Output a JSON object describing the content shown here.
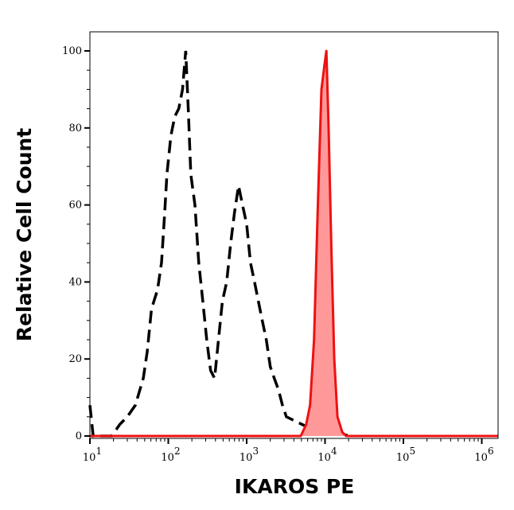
{
  "chart_data": {
    "type": "area",
    "title": "",
    "xlabel": "IKAROS PE",
    "ylabel": "Relative Cell Count",
    "xscale": "log",
    "xlim": [
      10,
      1600000
    ],
    "ylim": [
      0,
      105
    ],
    "grid": false,
    "x_ticks": [
      {
        "base": "10",
        "exp": "1",
        "value": 10
      },
      {
        "base": "10",
        "exp": "2",
        "value": 100
      },
      {
        "base": "10",
        "exp": "3",
        "value": 1000
      },
      {
        "base": "10",
        "exp": "4",
        "value": 10000
      },
      {
        "base": "10",
        "exp": "5",
        "value": 100000
      },
      {
        "base": "10",
        "exp": "6",
        "value": 1000000
      }
    ],
    "y_ticks": [
      "0",
      "20",
      "40",
      "60",
      "80",
      "100"
    ],
    "series": [
      {
        "style": "dashed-line",
        "color": "#000000",
        "x": [
          10,
          11,
          19,
          24,
          30,
          38,
          48,
          54,
          61,
          73,
          82,
          90,
          96,
          108,
          121,
          136,
          152,
          167,
          180,
          194,
          219,
          245,
          276,
          309,
          347,
          390,
          437,
          490,
          556,
          625,
          700,
          787,
          885,
          1000,
          1120,
          1260,
          1410,
          1580,
          1780,
          2000,
          2250,
          2550,
          2860,
          3210,
          4050,
          5100,
          6440,
          8100,
          13100,
          20900
        ],
        "y": [
          8,
          0,
          0,
          3,
          5,
          8,
          15,
          22,
          33,
          38,
          45,
          58,
          68,
          78,
          83,
          85,
          90,
          100,
          85,
          68,
          60,
          45,
          35,
          25,
          17,
          15,
          25,
          35,
          40,
          50,
          58,
          65,
          60,
          55,
          45,
          40,
          35,
          30,
          25,
          18,
          15,
          12,
          8,
          5,
          4,
          3,
          2,
          1,
          1,
          0
        ]
      },
      {
        "style": "filled-area",
        "color": "#ee1111",
        "fill": "#ff9999",
        "x": [
          10,
          4900,
          5750,
          6440,
          7250,
          8100,
          9000,
          9800,
          10400,
          11100,
          12000,
          13100,
          14400,
          16600,
          18600,
          1600000
        ],
        "y": [
          0,
          0,
          3,
          8,
          25,
          60,
          90,
          96,
          100,
          80,
          50,
          20,
          5,
          1,
          0,
          0
        ]
      }
    ]
  }
}
